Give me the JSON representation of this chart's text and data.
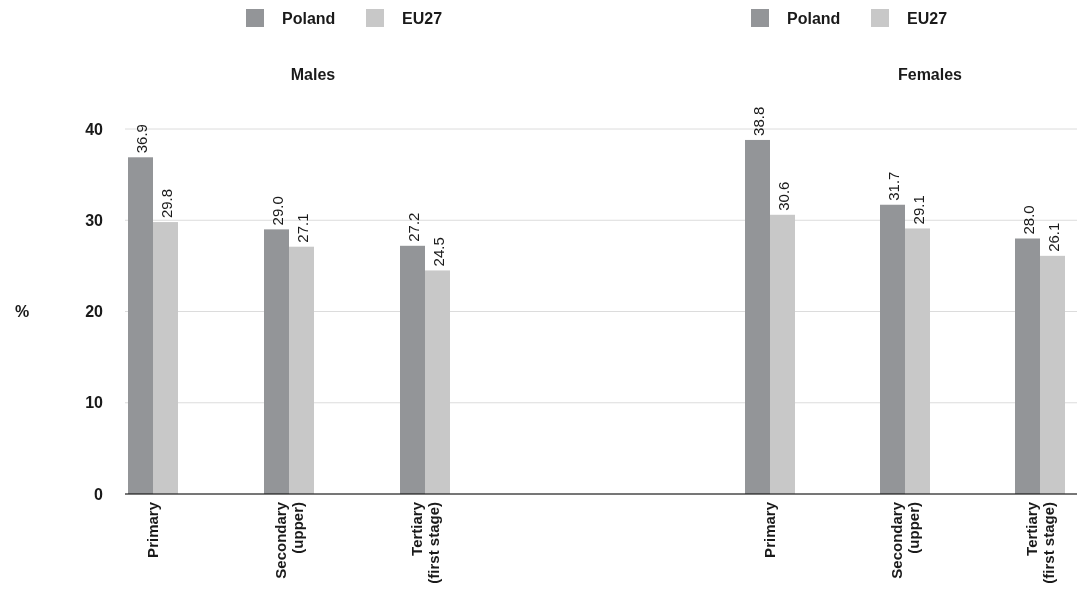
{
  "chart_data": [
    {
      "type": "bar",
      "title": "Males",
      "ylabel": "%",
      "categories": [
        "Primary",
        "Secondary (upper)",
        "Tertiary (first stage)"
      ],
      "series": [
        {
          "name": "Poland",
          "color": "#939598",
          "values": [
            36.9,
            29.0,
            27.2
          ],
          "value_labels": [
            "36.9",
            "29.0",
            "27.2"
          ]
        },
        {
          "name": "EU27",
          "color": "#c8c8c8",
          "values": [
            29.8,
            27.1,
            24.5
          ],
          "value_labels": [
            "29.8",
            "27.1",
            "24.5"
          ]
        }
      ],
      "ylim": [
        0,
        40
      ],
      "yticks": [
        0,
        10,
        20,
        30,
        40
      ],
      "grid": "y",
      "legend": "top"
    },
    {
      "type": "bar",
      "title": "Females",
      "categories": [
        "Primary",
        "Secondary (upper)",
        "Tertiary (first stage)"
      ],
      "series": [
        {
          "name": "Poland",
          "color": "#939598",
          "values": [
            38.8,
            31.7,
            28.0
          ],
          "value_labels": [
            "38.8",
            "31.7",
            "28.0"
          ]
        },
        {
          "name": "EU27",
          "color": "#c8c8c8",
          "values": [
            30.6,
            29.1,
            26.1
          ],
          "value_labels": [
            "30.6",
            "29.1",
            "26.1"
          ]
        }
      ],
      "ylim": [
        0,
        40
      ],
      "yticks": [
        0,
        10,
        20,
        30,
        40
      ],
      "grid": "y",
      "legend": "top",
      "tick_labels": "x"
    }
  ]
}
